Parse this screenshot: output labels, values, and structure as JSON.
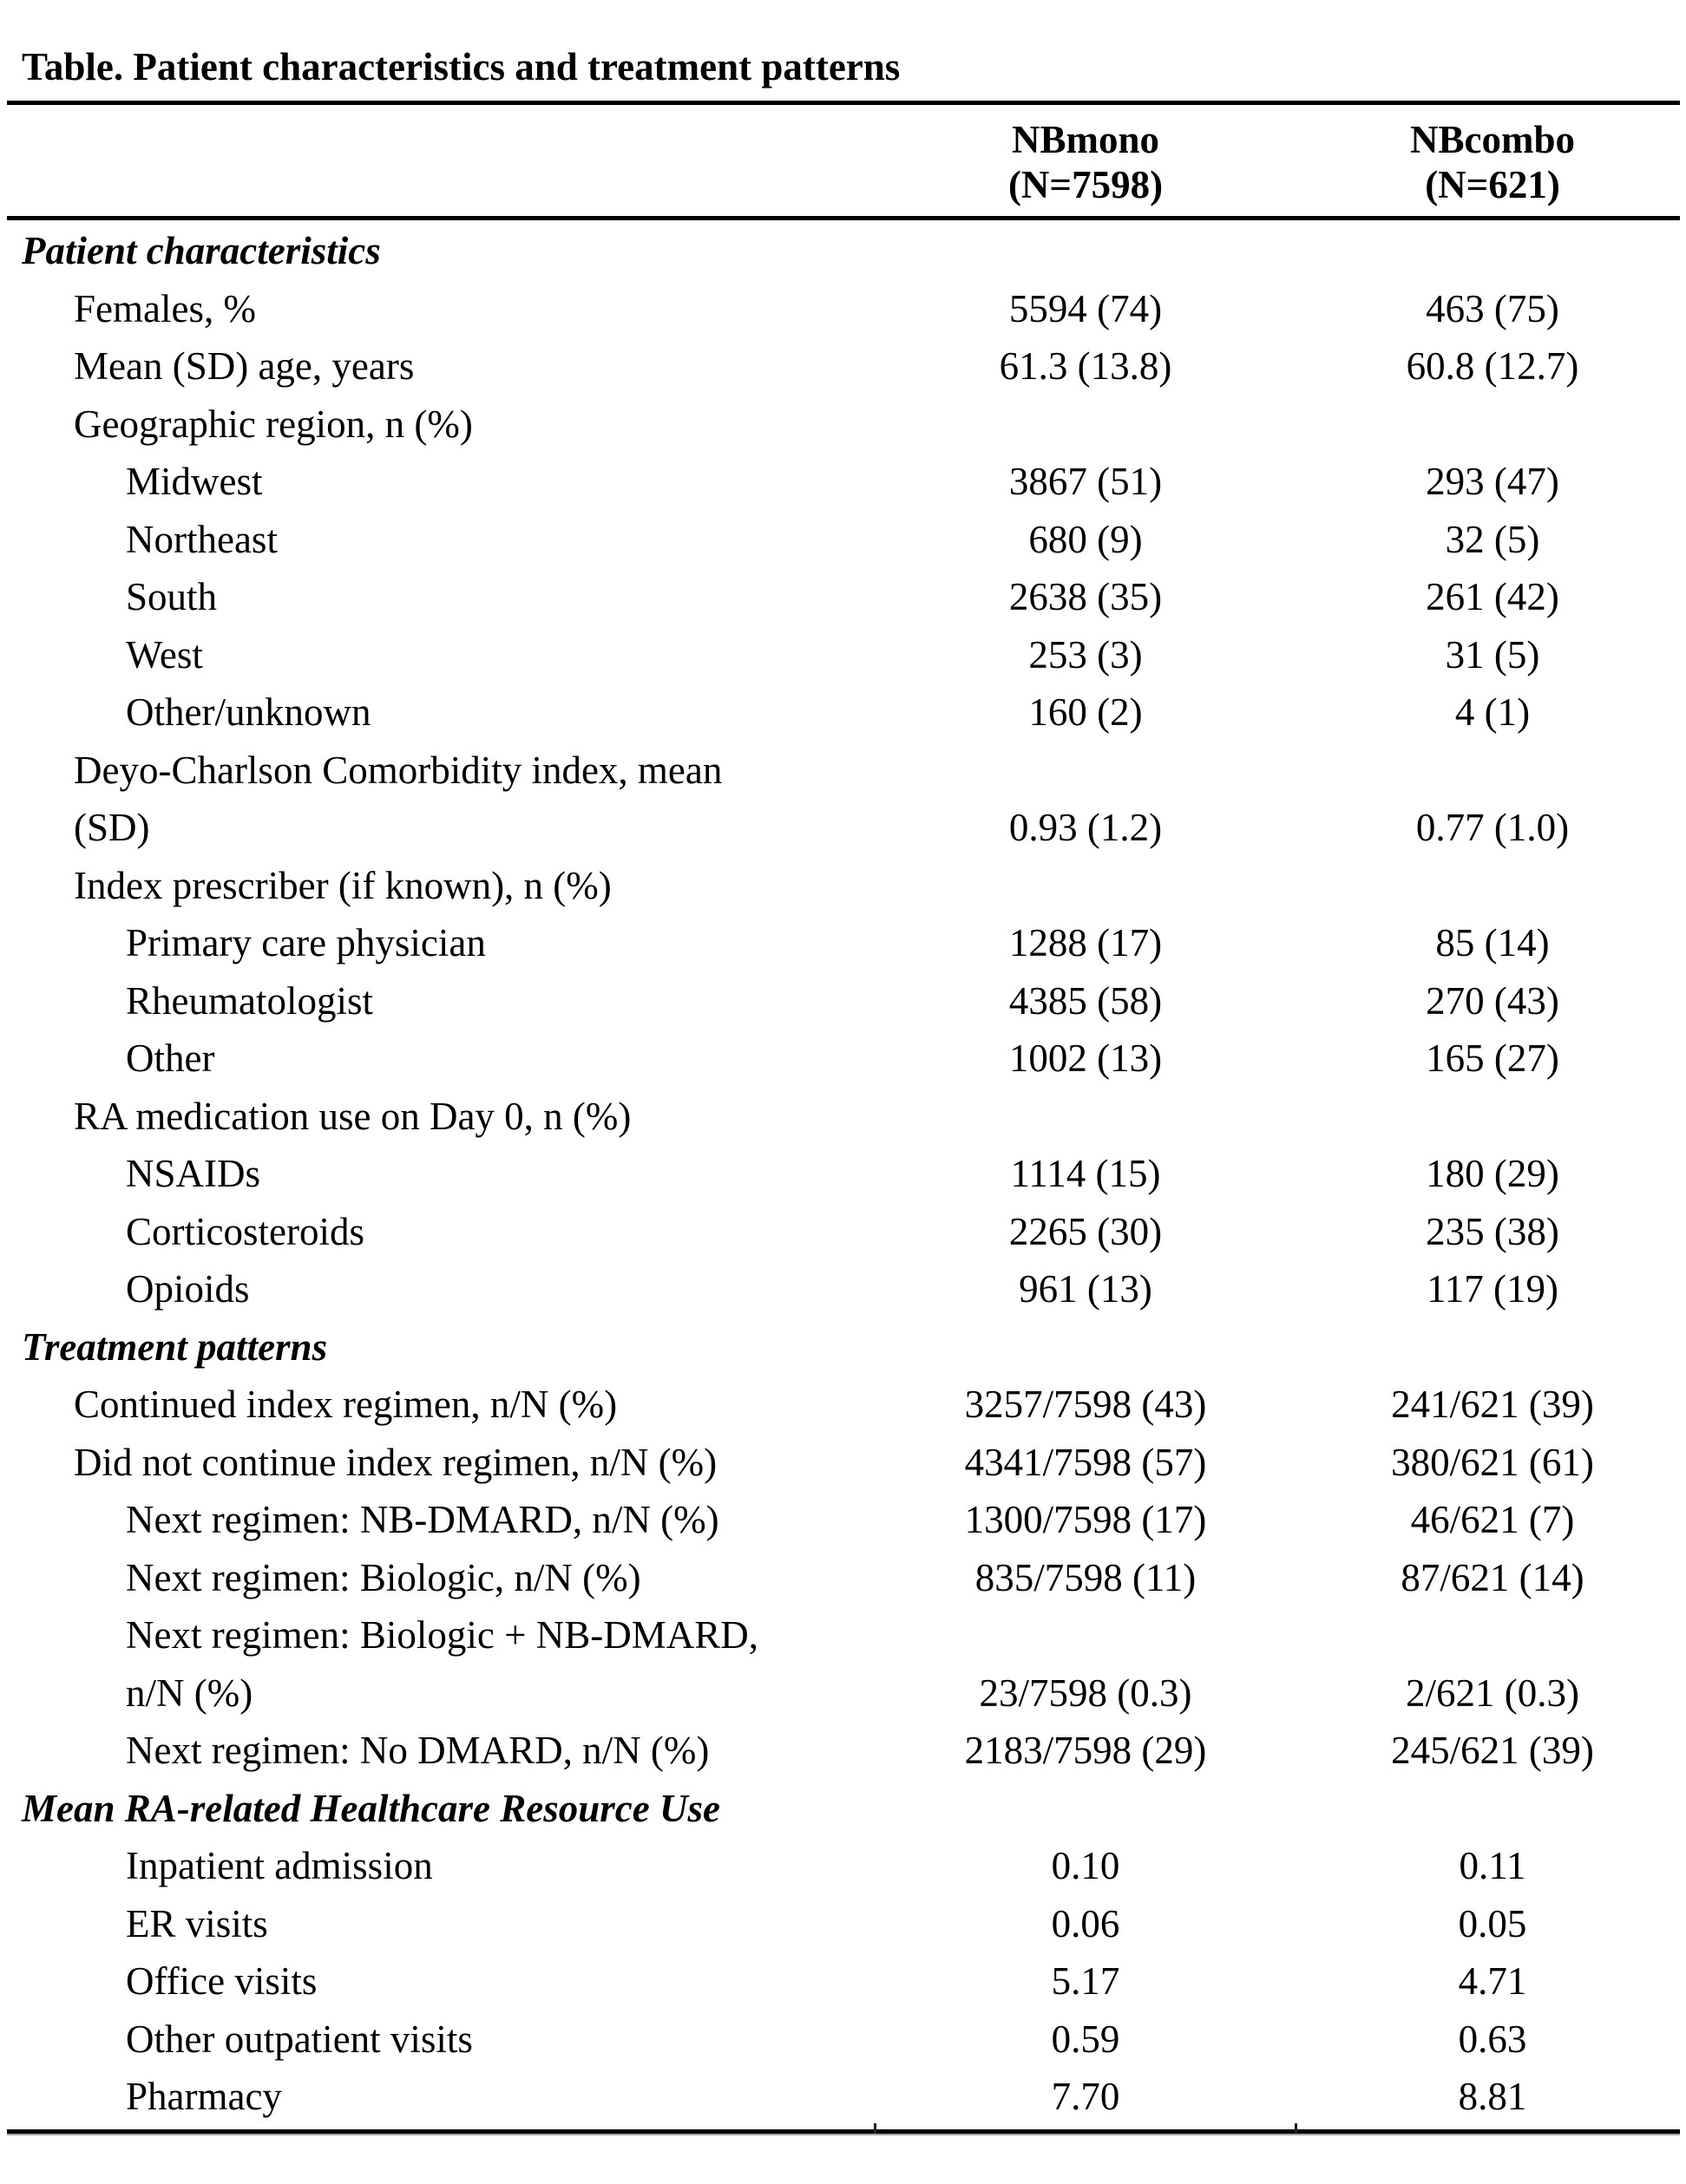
{
  "title": "Table. Patient characteristics and treatment patterns",
  "columns": [
    {
      "name": "NBmono",
      "n": "(N=7598)"
    },
    {
      "name": "NBcombo",
      "n": "(N=621)"
    }
  ],
  "rows": [
    {
      "type": "section",
      "label": "Patient characteristics"
    },
    {
      "type": "row",
      "indent": 1,
      "label": "Females, %",
      "v1": "5594 (74)",
      "v2": "463 (75)"
    },
    {
      "type": "row",
      "indent": 1,
      "label": "Mean (SD) age, years",
      "v1": "61.3 (13.8)",
      "v2": "60.8 (12.7)"
    },
    {
      "type": "row",
      "indent": 1,
      "label": "Geographic region, n (%)",
      "v1": "",
      "v2": ""
    },
    {
      "type": "row",
      "indent": 2,
      "label": "Midwest",
      "v1": "3867 (51)",
      "v2": "293 (47)"
    },
    {
      "type": "row",
      "indent": 2,
      "label": "Northeast",
      "v1": "680 (9)",
      "v2": "32 (5)"
    },
    {
      "type": "row",
      "indent": 2,
      "label": "South",
      "v1": "2638 (35)",
      "v2": "261 (42)"
    },
    {
      "type": "row",
      "indent": 2,
      "label": "West",
      "v1": "253 (3)",
      "v2": "31 (5)"
    },
    {
      "type": "row",
      "indent": 2,
      "label": "Other/unknown",
      "v1": "160 (2)",
      "v2": "4 (1)"
    },
    {
      "type": "row",
      "indent": 1,
      "label": "Deyo-Charlson Comorbidity index, mean\n(SD)",
      "v1": "0.93 (1.2)",
      "v2": "0.77 (1.0)"
    },
    {
      "type": "row",
      "indent": 1,
      "label": "Index prescriber (if known), n (%)",
      "v1": "",
      "v2": ""
    },
    {
      "type": "row",
      "indent": 2,
      "label": "Primary care physician",
      "v1": "1288 (17)",
      "v2": "85 (14)"
    },
    {
      "type": "row",
      "indent": 2,
      "label": "Rheumatologist",
      "v1": "4385 (58)",
      "v2": "270 (43)"
    },
    {
      "type": "row",
      "indent": 2,
      "label": "Other",
      "v1": "1002 (13)",
      "v2": "165 (27)"
    },
    {
      "type": "row",
      "indent": 1,
      "label": "RA medication use on Day 0, n (%)",
      "v1": "",
      "v2": ""
    },
    {
      "type": "row",
      "indent": 2,
      "label": "NSAIDs",
      "v1": "1114 (15)",
      "v2": "180 (29)"
    },
    {
      "type": "row",
      "indent": 2,
      "label": "Corticosteroids",
      "v1": "2265 (30)",
      "v2": "235 (38)"
    },
    {
      "type": "row",
      "indent": 2,
      "label": "Opioids",
      "v1": "961 (13)",
      "v2": "117 (19)"
    },
    {
      "type": "section",
      "label": "Treatment patterns"
    },
    {
      "type": "row",
      "indent": 1,
      "label": "Continued index regimen, n/N (%)",
      "v1": "3257/7598 (43)",
      "v2": "241/621 (39)"
    },
    {
      "type": "row",
      "indent": 1,
      "label": "Did not continue index regimen, n/N (%)",
      "v1": "4341/7598 (57)",
      "v2": "380/621 (61)"
    },
    {
      "type": "row",
      "indent": 2,
      "label": "Next regimen: NB-DMARD, n/N (%)",
      "v1": "1300/7598 (17)",
      "v2": "46/621 (7)"
    },
    {
      "type": "row",
      "indent": 2,
      "label": "Next regimen: Biologic, n/N (%)",
      "v1": "835/7598 (11)",
      "v2": "87/621 (14)"
    },
    {
      "type": "row",
      "indent": 2,
      "label": "Next regimen: Biologic + NB-DMARD,\nn/N (%)",
      "v1": "23/7598 (0.3)",
      "v2": "2/621 (0.3)"
    },
    {
      "type": "row",
      "indent": 2,
      "label": "Next regimen: No DMARD, n/N (%)",
      "v1": "2183/7598 (29)",
      "v2": "245/621 (39)"
    },
    {
      "type": "section",
      "label": "Mean RA-related Healthcare Resource Use"
    },
    {
      "type": "row",
      "indent": 2,
      "label": "Inpatient admission",
      "v1": "0.10",
      "v2": "0.11"
    },
    {
      "type": "row",
      "indent": 2,
      "label": "ER visits",
      "v1": "0.06",
      "v2": "0.05"
    },
    {
      "type": "row",
      "indent": 2,
      "label": "Office visits",
      "v1": "5.17",
      "v2": "4.71"
    },
    {
      "type": "row",
      "indent": 2,
      "label": "Other outpatient visits",
      "v1": "0.59",
      "v2": "0.63"
    },
    {
      "type": "row",
      "indent": 2,
      "label": "Pharmacy",
      "v1": "7.70",
      "v2": "8.81"
    }
  ]
}
